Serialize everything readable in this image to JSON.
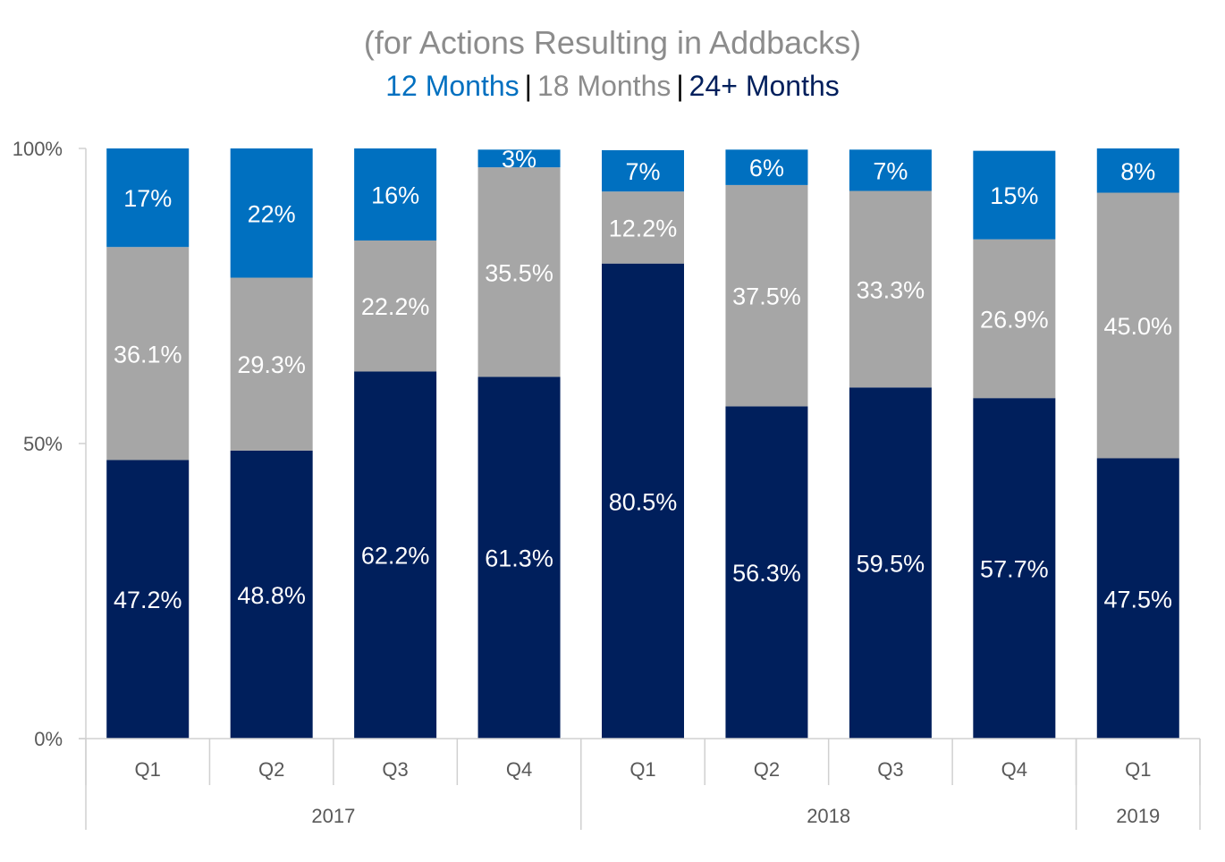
{
  "chart_data": {
    "type": "bar",
    "stacked": true,
    "title": "(for Actions Resulting in Addbacks)",
    "legend_labels": {
      "separator": "|"
    },
    "categories": [
      "Q1",
      "Q2",
      "Q3",
      "Q4",
      "Q1",
      "Q2",
      "Q3",
      "Q4",
      "Q1"
    ],
    "groups": [
      {
        "label": "2017",
        "span": [
          0,
          3
        ]
      },
      {
        "label": "2018",
        "span": [
          4,
          7
        ]
      },
      {
        "label": "2019",
        "span": [
          8,
          8
        ]
      }
    ],
    "series": [
      {
        "name": "24+ Months",
        "color": "#001f5c",
        "values": [
          47.2,
          48.8,
          62.2,
          61.3,
          80.5,
          56.3,
          59.5,
          57.7,
          47.5
        ],
        "labels": [
          "47.2%",
          "48.8%",
          "62.2%",
          "61.3%",
          "80.5%",
          "56.3%",
          "59.5%",
          "57.7%",
          "47.5%"
        ]
      },
      {
        "name": "18 Months",
        "color": "#a6a6a6",
        "values": [
          36.1,
          29.3,
          22.2,
          35.5,
          12.2,
          37.5,
          33.3,
          26.9,
          45.0
        ],
        "labels": [
          "36.1%",
          "29.3%",
          "22.2%",
          "35.5%",
          "12.2%",
          "37.5%",
          "33.3%",
          "26.9%",
          "45.0%"
        ]
      },
      {
        "name": "12 Months",
        "color": "#0070c0",
        "values": [
          17,
          22,
          16,
          3,
          7,
          6,
          7,
          15,
          8
        ],
        "labels": [
          "17%",
          "22%",
          "16%",
          "3%",
          "7%",
          "6%",
          "7%",
          "15%",
          "8%"
        ]
      }
    ],
    "ylim": [
      0,
      100
    ],
    "yticks": [
      "0%",
      "50%",
      "100%"
    ],
    "grid": false,
    "xlabel": "",
    "ylabel": ""
  }
}
